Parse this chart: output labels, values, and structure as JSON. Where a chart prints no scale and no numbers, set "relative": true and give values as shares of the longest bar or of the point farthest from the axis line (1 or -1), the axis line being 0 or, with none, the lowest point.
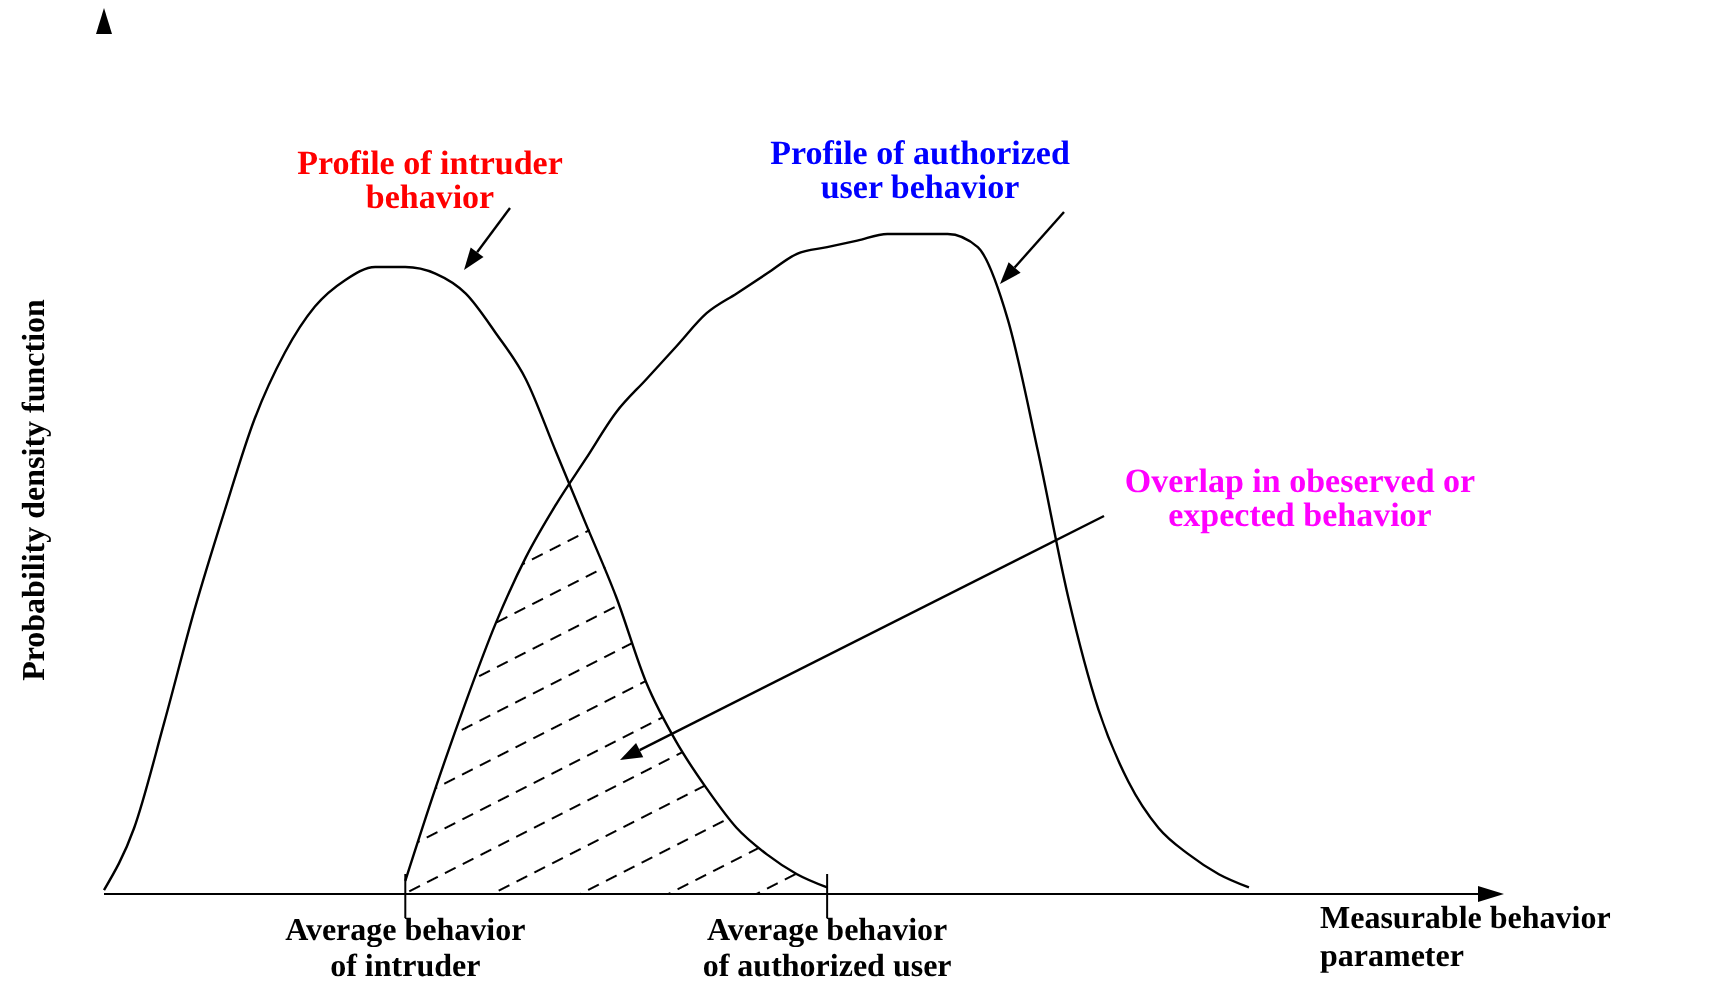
{
  "chart_data": {
    "type": "line",
    "relative": true,
    "xlabel": "Measurable behavior parameter",
    "ylabel": "Probability density function",
    "categories": [
      null,
      null,
      null,
      null,
      null,
      null,
      null,
      null,
      null,
      null,
      "Average behavior of intruder",
      null,
      null,
      null,
      null,
      null,
      null,
      null,
      null,
      null,
      null,
      null,
      null,
      null,
      "Average behavior of authorized user",
      null,
      null,
      null,
      null,
      null,
      null,
      null,
      null,
      null,
      null,
      null,
      null,
      null,
      null,
      null,
      null,
      null,
      null,
      null,
      null,
      null,
      null
    ],
    "series": [
      {
        "color": "#000000",
        "values": [
          0.006,
          0.1,
          0.26,
          0.43,
          0.58,
          0.72,
          0.82,
          0.89,
          0.93,
          0.95,
          0.95,
          0.94,
          0.91,
          0.85,
          0.78,
          0.67,
          0.56,
          0.45,
          0.32,
          0.23,
          0.16,
          0.1,
          0.06,
          0.03,
          0.01,
          null,
          null,
          null,
          null,
          null,
          null,
          null,
          null,
          null,
          null,
          null,
          null,
          null,
          null,
          null,
          null,
          null,
          null,
          null,
          null,
          null,
          null
        ]
      },
      {
        "color": "#000000",
        "values": [
          null,
          null,
          null,
          null,
          null,
          null,
          null,
          null,
          null,
          null,
          0.02,
          0.16,
          0.29,
          0.41,
          0.51,
          0.59,
          0.66,
          0.73,
          0.78,
          0.83,
          0.88,
          0.91,
          0.94,
          0.97,
          0.98,
          0.99,
          1.0,
          1.0,
          1.0,
          0.98,
          0.87,
          0.67,
          0.45,
          0.28,
          0.17,
          0.1,
          0.06,
          0.03,
          0.01,
          null,
          null,
          null,
          null,
          null,
          null,
          null,
          null
        ]
      },
      {
        "type": "area",
        "color": "#000000",
        "values": [
          null,
          null,
          null,
          null,
          null,
          null,
          null,
          null,
          null,
          null,
          0.02,
          0.16,
          0.29,
          0.41,
          0.51,
          0.59,
          0.56,
          0.45,
          0.32,
          0.23,
          0.16,
          0.1,
          0.06,
          0.03,
          0.01,
          null,
          null,
          null,
          null,
          null,
          null,
          null,
          null,
          null,
          null,
          null,
          null,
          null,
          null,
          null,
          null,
          null,
          null,
          null,
          null,
          null,
          null
        ]
      }
    ],
    "annotations": [
      "Profile of intruder behavior",
      "Profile of authorized user behavior",
      "Overlap in obeserved or expected behavior"
    ]
  }
}
